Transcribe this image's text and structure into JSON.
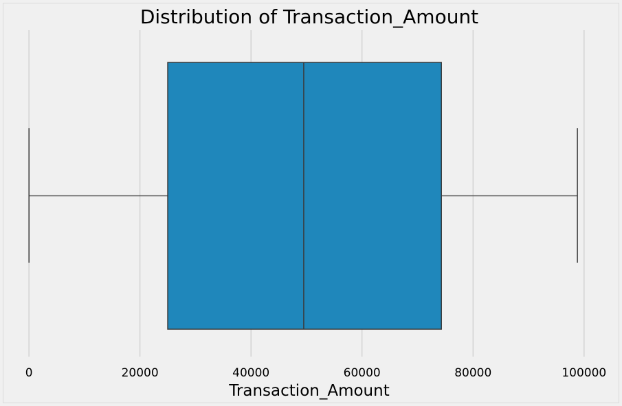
{
  "chart_data": {
    "type": "box",
    "title": "Distribution of Transaction_Amount",
    "xlabel": "Transaction_Amount",
    "ylabel": "",
    "xlim": [
      -1500,
      102500
    ],
    "orientation": "horizontal",
    "grid": true,
    "x_ticks": [
      0,
      20000,
      40000,
      60000,
      80000,
      100000
    ],
    "x_tick_labels": [
      "0",
      "20000",
      "40000",
      "60000",
      "80000",
      "100000"
    ],
    "box": {
      "min": 10,
      "q1": 25000,
      "median": 49500,
      "q3": 74300,
      "max": 98800
    },
    "colors": {
      "box_fill": "#1f87bb",
      "box_edge": "#3a3a3a",
      "whisker": "#555555",
      "grid": "#cbcbcb",
      "background": "#f0f0f0",
      "figure_background": "#f0f0f0",
      "border": "#dadada"
    }
  }
}
